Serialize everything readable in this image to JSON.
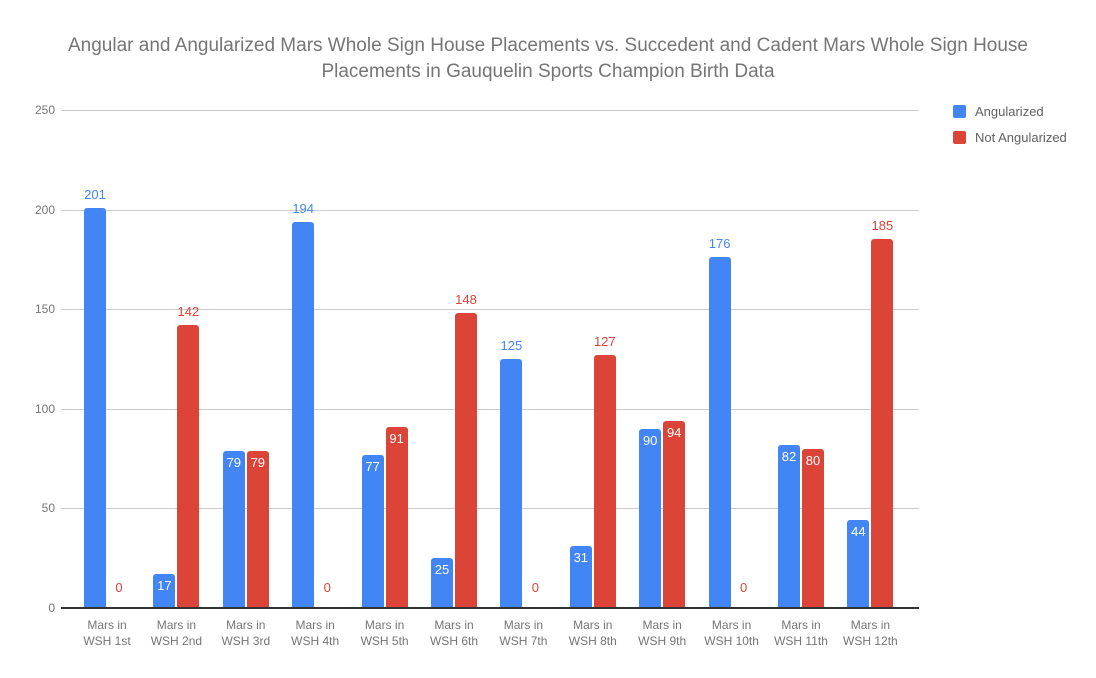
{
  "chart": {
    "title_line1": "Angular and Angularized Mars Whole Sign House Placements vs. Succedent and Cadent Mars Whole Sign House",
    "title_line2": "Placements in Gauquelin Sports Champion Birth Data"
  },
  "legend": {
    "items": [
      {
        "label": "Angularized",
        "color": "#4285f4"
      },
      {
        "label": "Not Angularized",
        "color": "#db4437"
      }
    ]
  },
  "chart_data": {
    "type": "bar",
    "title": "Angular and Angularized Mars Whole Sign House Placements vs. Succedent and Cadent Mars Whole Sign House Placements in Gauquelin Sports Champion Birth Data",
    "categories": [
      "Mars in WSH 1st",
      "Mars in WSH 2nd",
      "Mars in WSH 3rd",
      "Mars in WSH 4th",
      "Mars in WSH 5th",
      "Mars in WSH 6th",
      "Mars in WSH 7th",
      "Mars in WSH 8th",
      "Mars in WSH 9th",
      "Mars in WSH 10th",
      "Mars in WSH 11th",
      "Mars in WSH 12th"
    ],
    "series": [
      {
        "name": "Angularized",
        "color": "#4285f4",
        "values": [
          201,
          17,
          79,
          194,
          77,
          25,
          125,
          31,
          90,
          176,
          82,
          44
        ]
      },
      {
        "name": "Not Angularized",
        "color": "#db4437",
        "values": [
          0,
          142,
          79,
          0,
          91,
          148,
          0,
          127,
          94,
          0,
          80,
          185
        ]
      }
    ],
    "xlabel": "",
    "ylabel": "",
    "ylim": [
      0,
      250
    ],
    "yticks": [
      0,
      50,
      100,
      150,
      200,
      250
    ],
    "grid": true,
    "legend_position": "top-right",
    "bar_labels": true,
    "label_outside_threshold": 110
  },
  "colors": {
    "background": "#ffffff",
    "title_text": "#757575",
    "axis_text": "#757575",
    "legend_text": "#616161",
    "gridline": "#cccccc",
    "axis_line": "#333333",
    "bar_label_inside": "#ffffff"
  }
}
